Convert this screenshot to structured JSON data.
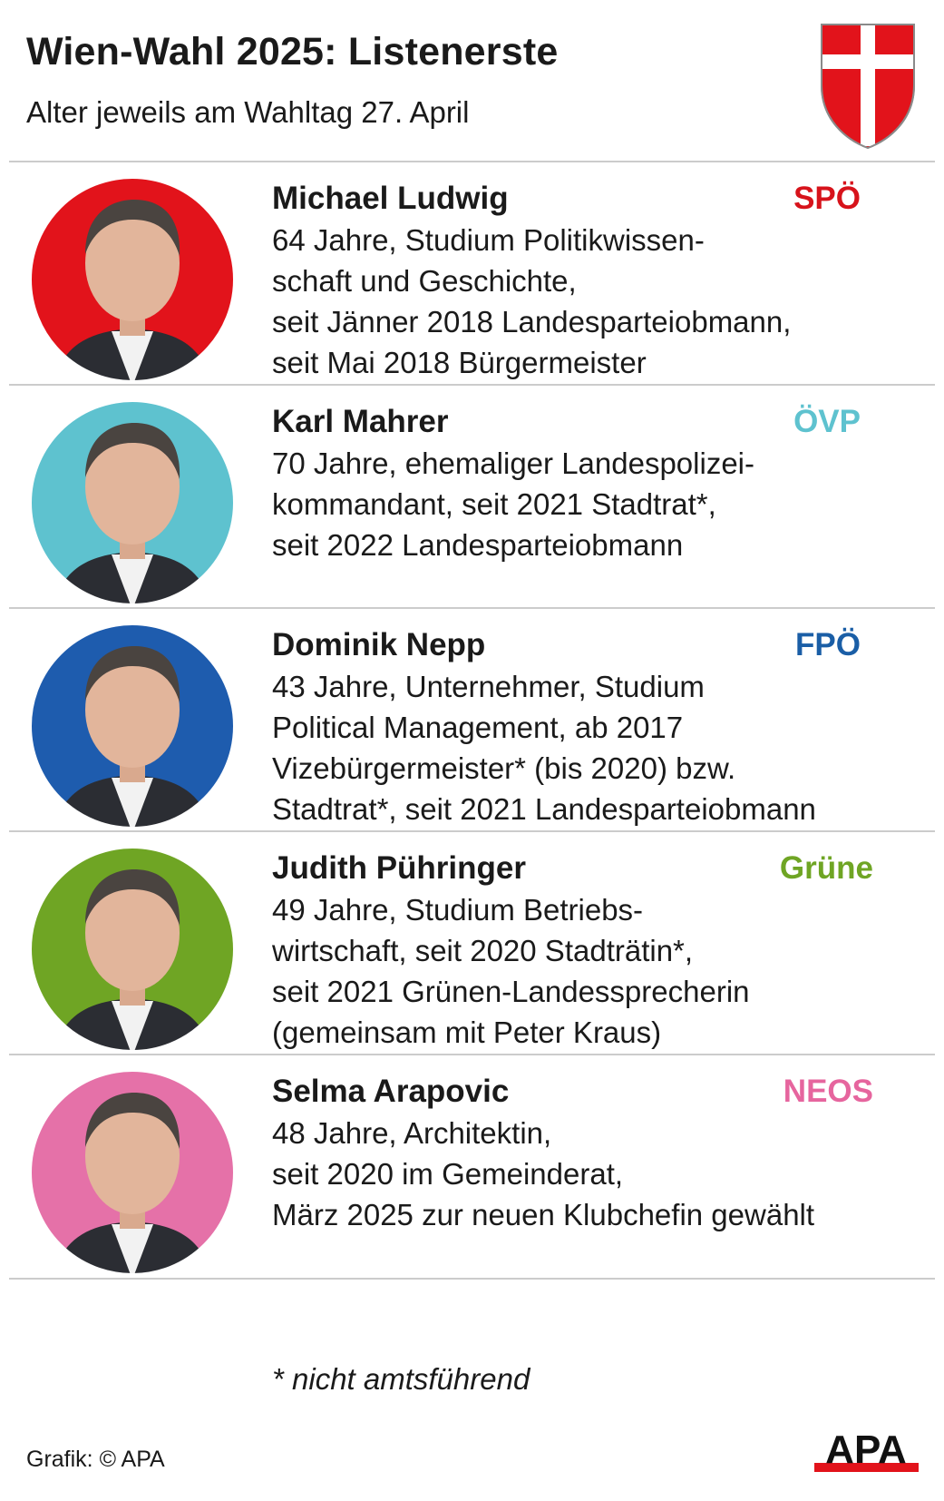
{
  "header": {
    "title": "Wien-Wahl 2025: Listenerste",
    "subtitle": "Alter jeweils am Wahltag 27. April"
  },
  "candidates": [
    {
      "name": "Michael Ludwig",
      "party": "SPÖ",
      "party_color": "#d7131b",
      "bg_color": "#e2131b",
      "desc": [
        "64 Jahre, Studium Politikwissen-",
        "schaft und Geschichte,",
        "seit Jänner 2018 Landesparteiobmann,",
        "seit Mai 2018 Bürgermeister"
      ]
    },
    {
      "name": "Karl Mahrer",
      "party": "ÖVP",
      "party_color": "#5ec2cf",
      "bg_color": "#5ec2cf",
      "desc": [
        "70 Jahre, ehemaliger Landespolizei-",
        "kommandant, seit 2021 Stadtrat*,",
        "seit 2022 Landesparteiobmann"
      ]
    },
    {
      "name": "Dominik Nepp",
      "party": "FPÖ",
      "party_color": "#1a5ea6",
      "bg_color": "#1e5cae",
      "desc": [
        "43 Jahre, Unternehmer, Studium",
        "Political Management, ab 2017",
        "Vizebürgermeister* (bis 2020) bzw.",
        "Stadtrat*, seit 2021 Landesparteiobmann"
      ]
    },
    {
      "name": "Judith Pühringer",
      "party": "Grüne",
      "party_color": "#6fa524",
      "bg_color": "#6fa524",
      "desc": [
        "49 Jahre, Studium Betriebs-",
        "wirtschaft, seit 2020 Stadträtin*,",
        "seit 2021 Grünen-Landessprecherin",
        "(gemeinsam mit Peter Kraus)"
      ]
    },
    {
      "name": "Selma Arapovic",
      "party": "NEOS",
      "party_color": "#e6659e",
      "bg_color": "#e571a8",
      "desc": [
        "48 Jahre, Architektin,",
        "seit 2020 im Gemeinderat,",
        "März 2025 zur neuen Klubchefin gewählt"
      ]
    }
  ],
  "footnote": "* nicht amtsführend",
  "credit": "Grafik: © APA",
  "logo": {
    "text": "APA",
    "icon": "apa-logo"
  },
  "crest": {
    "icon": "vienna-coat-of-arms",
    "red": "#e2131b"
  }
}
